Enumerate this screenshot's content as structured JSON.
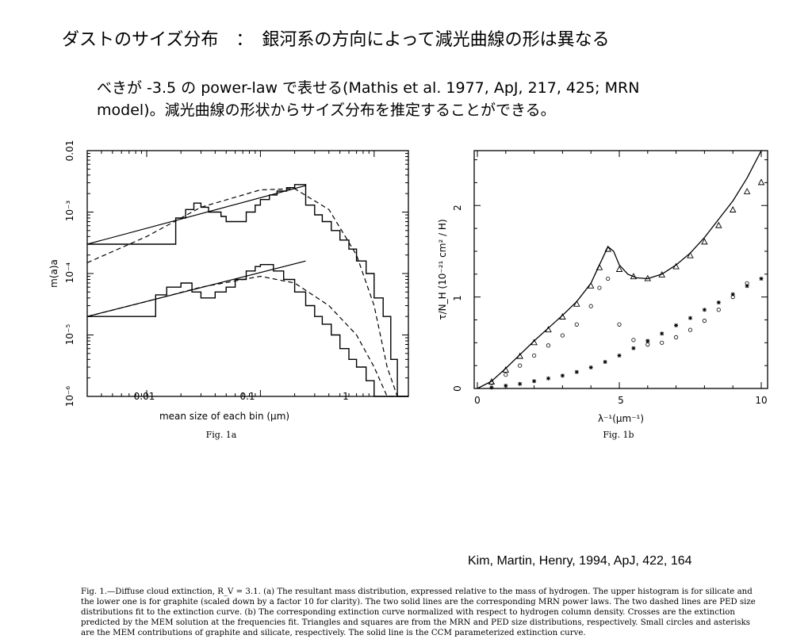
{
  "slide": {
    "title": "ダストのサイズ分布　：　銀河系の方向によって減光曲線の形は異なる",
    "body_lines": [
      "べきが -3.5 の power-law で表せる(Mathis et al. 1977, ApJ, 217, 425; MRN",
      "model)。減光曲線の形状からサイズ分布を推定することができる。"
    ],
    "citation": "Kim, Martin, Henry, 1994, ApJ, 422, 164"
  },
  "figure": {
    "caption_lines": [
      "Fig. 1.—Diffuse cloud extinction, R_V = 3.1. (a) The resultant mass distribution, expressed relative to the mass of hydrogen. The upper histogram is for silicate and",
      "the lower one is for graphite (scaled down by a factor 10 for clarity). The two solid lines are the corresponding MRN power laws. The two dashed lines are PED size",
      "distributions fit to the extinction curve. (b) The corresponding extinction curve normalized with respect to hydrogen column density. Crosses are the extinction",
      "predicted by the MEM solution at the frequencies fit. Triangles and squares are from the MRN and PED size distributions, respectively. Small circles and asterisks",
      "are the MEM contributions of graphite and silicate, respectively. The solid line is the CCM parameterized extinction curve."
    ],
    "panel_a": {
      "label": "Fig. 1a",
      "xlabel": "mean size of each bin (μm)",
      "ylabel": "m(a)a",
      "x_ticks": [
        "0.01",
        "0.1",
        "1"
      ],
      "y_ticks": [
        "10⁻⁶",
        "10⁻⁵",
        "10⁻⁴",
        "10⁻³",
        "0.01"
      ]
    },
    "panel_b": {
      "label": "Fig. 1b",
      "xlabel": "λ⁻¹(μm⁻¹)",
      "ylabel": "τ/N_H (10⁻²¹ cm² / H)",
      "x_ticks": [
        "0",
        "5",
        "10"
      ],
      "y_ticks": [
        "0",
        "1",
        "2"
      ]
    }
  },
  "chart_data": [
    {
      "type": "line",
      "title": "",
      "xlabel": "mean size of each bin (μm)",
      "ylabel": "m(a)a",
      "xscale": "log",
      "yscale": "log",
      "xlim": [
        0.003,
        2.0
      ],
      "ylim": [
        1e-06,
        0.01
      ],
      "series": [
        {
          "name": "",
          "style": "histogram",
          "x": [
            0.003,
            0.018,
            0.022,
            0.026,
            0.03,
            0.035,
            0.045,
            0.05,
            0.06,
            0.075,
            0.09,
            0.1,
            0.12,
            0.14,
            0.17,
            0.2,
            0.25,
            0.3,
            0.35,
            0.42,
            0.5,
            0.6,
            0.7,
            0.85,
            1.0,
            1.2,
            1.4,
            1.6
          ],
          "y": [
            0.0003,
            0.0008,
            0.0011,
            0.0014,
            0.0012,
            0.001,
            0.00085,
            0.0007,
            0.0007,
            0.001,
            0.0013,
            0.0016,
            0.0019,
            0.0022,
            0.0025,
            0.0028,
            0.0013,
            0.0009,
            0.0007,
            0.0005,
            0.00035,
            0.00025,
            0.00016,
            0.0001,
            4e-05,
            2e-05,
            4e-06,
            1e-06
          ]
        },
        {
          "name": "",
          "style": "histogram",
          "x": [
            0.003,
            0.012,
            0.015,
            0.02,
            0.025,
            0.03,
            0.04,
            0.05,
            0.06,
            0.075,
            0.09,
            0.1,
            0.13,
            0.16,
            0.2,
            0.25,
            0.3,
            0.35,
            0.42,
            0.5,
            0.6,
            0.7,
            0.85,
            1.0,
            1.2,
            1.4,
            1.6
          ],
          "y": [
            2e-05,
            4.5e-05,
            6e-05,
            7e-05,
            5e-05,
            4e-05,
            5e-05,
            6e-05,
            8e-05,
            0.00011,
            0.00013,
            0.00014,
            0.00011,
            8e-05,
            5e-05,
            3e-05,
            2e-05,
            1.5e-05,
            1e-05,
            6e-06,
            4e-06,
            3e-06,
            1.8e-06,
            1e-06,
            1e-06,
            1e-06,
            1e-06
          ]
        },
        {
          "name": "",
          "style": "solid",
          "x": [
            0.003,
            0.25
          ],
          "y": [
            0.0003,
            0.0027
          ]
        },
        {
          "name": "",
          "style": "solid",
          "x": [
            0.003,
            0.25
          ],
          "y": [
            2e-05,
            0.00016
          ]
        },
        {
          "name": "",
          "style": "dashed",
          "x": [
            0.003,
            0.01,
            0.03,
            0.1,
            0.2,
            0.4,
            0.7,
            1.0,
            1.3,
            1.6
          ],
          "y": [
            0.00015,
            0.0004,
            0.0012,
            0.0023,
            0.0024,
            0.0011,
            0.0002,
            3e-05,
            3e-06,
            1e-06
          ]
        },
        {
          "name": "",
          "style": "dashed",
          "x": [
            0.003,
            0.01,
            0.03,
            0.1,
            0.2,
            0.4,
            0.7,
            1.0,
            1.3,
            1.6
          ],
          "y": [
            2e-05,
            3.5e-05,
            6e-05,
            9e-05,
            7e-05,
            3e-05,
            1e-05,
            3e-06,
            1e-06,
            1e-06
          ]
        }
      ]
    },
    {
      "type": "scatter",
      "title": "",
      "xlabel": "λ⁻¹(μm⁻¹)",
      "ylabel": "τ/N_H (10⁻²¹ cm² / H)",
      "xlim": [
        0,
        10
      ],
      "ylim": [
        0,
        2.6
      ],
      "series": [
        {
          "name": "",
          "style": "solid",
          "x": [
            0.0,
            0.5,
            1.0,
            1.5,
            2.0,
            2.5,
            3.0,
            3.5,
            4.0,
            4.3,
            4.6,
            4.8,
            5.0,
            5.3,
            5.6,
            6.0,
            6.5,
            7.0,
            7.5,
            8.0,
            8.5,
            9.0,
            9.5,
            10.0
          ],
          "y": [
            0.0,
            0.08,
            0.22,
            0.37,
            0.52,
            0.66,
            0.8,
            0.95,
            1.15,
            1.35,
            1.55,
            1.5,
            1.35,
            1.25,
            1.21,
            1.2,
            1.25,
            1.35,
            1.48,
            1.65,
            1.85,
            2.05,
            2.3,
            2.6
          ]
        },
        {
          "name": "",
          "style": "markers",
          "x": [
            0.5,
            1.0,
            1.5,
            2.0,
            2.5,
            3.0,
            3.5,
            4.0,
            4.3,
            4.6,
            5.0,
            5.5,
            6.0,
            6.5,
            7.0,
            7.5,
            8.0,
            8.5,
            9.0,
            9.5,
            10.0
          ],
          "y": [
            0.07,
            0.2,
            0.35,
            0.5,
            0.64,
            0.78,
            0.92,
            1.12,
            1.32,
            1.52,
            1.3,
            1.22,
            1.2,
            1.24,
            1.33,
            1.45,
            1.6,
            1.78,
            1.95,
            2.15,
            2.25
          ]
        },
        {
          "name": "",
          "style": "markers",
          "x": [
            0.5,
            1.0,
            1.5,
            2.0,
            2.5,
            3.0,
            3.5,
            4.0,
            4.3,
            4.6,
            5.0,
            5.5,
            6.0,
            6.5,
            7.0,
            7.5,
            8.0,
            8.5,
            9.0,
            9.5
          ],
          "y": [
            0.06,
            0.15,
            0.25,
            0.36,
            0.47,
            0.58,
            0.7,
            0.9,
            1.1,
            1.2,
            0.7,
            0.53,
            0.48,
            0.5,
            0.56,
            0.64,
            0.74,
            0.86,
            1.0,
            1.15
          ]
        },
        {
          "name": "",
          "style": "markers",
          "x": [
            0.5,
            1.0,
            1.5,
            2.0,
            2.5,
            3.0,
            3.5,
            4.0,
            4.5,
            5.0,
            5.5,
            6.0,
            6.5,
            7.0,
            7.5,
            8.0,
            8.5,
            9.0,
            9.5,
            10.0
          ],
          "y": [
            0.01,
            0.03,
            0.05,
            0.08,
            0.11,
            0.14,
            0.18,
            0.23,
            0.29,
            0.36,
            0.44,
            0.52,
            0.6,
            0.69,
            0.77,
            0.86,
            0.94,
            1.03,
            1.12,
            1.2
          ]
        }
      ]
    }
  ]
}
